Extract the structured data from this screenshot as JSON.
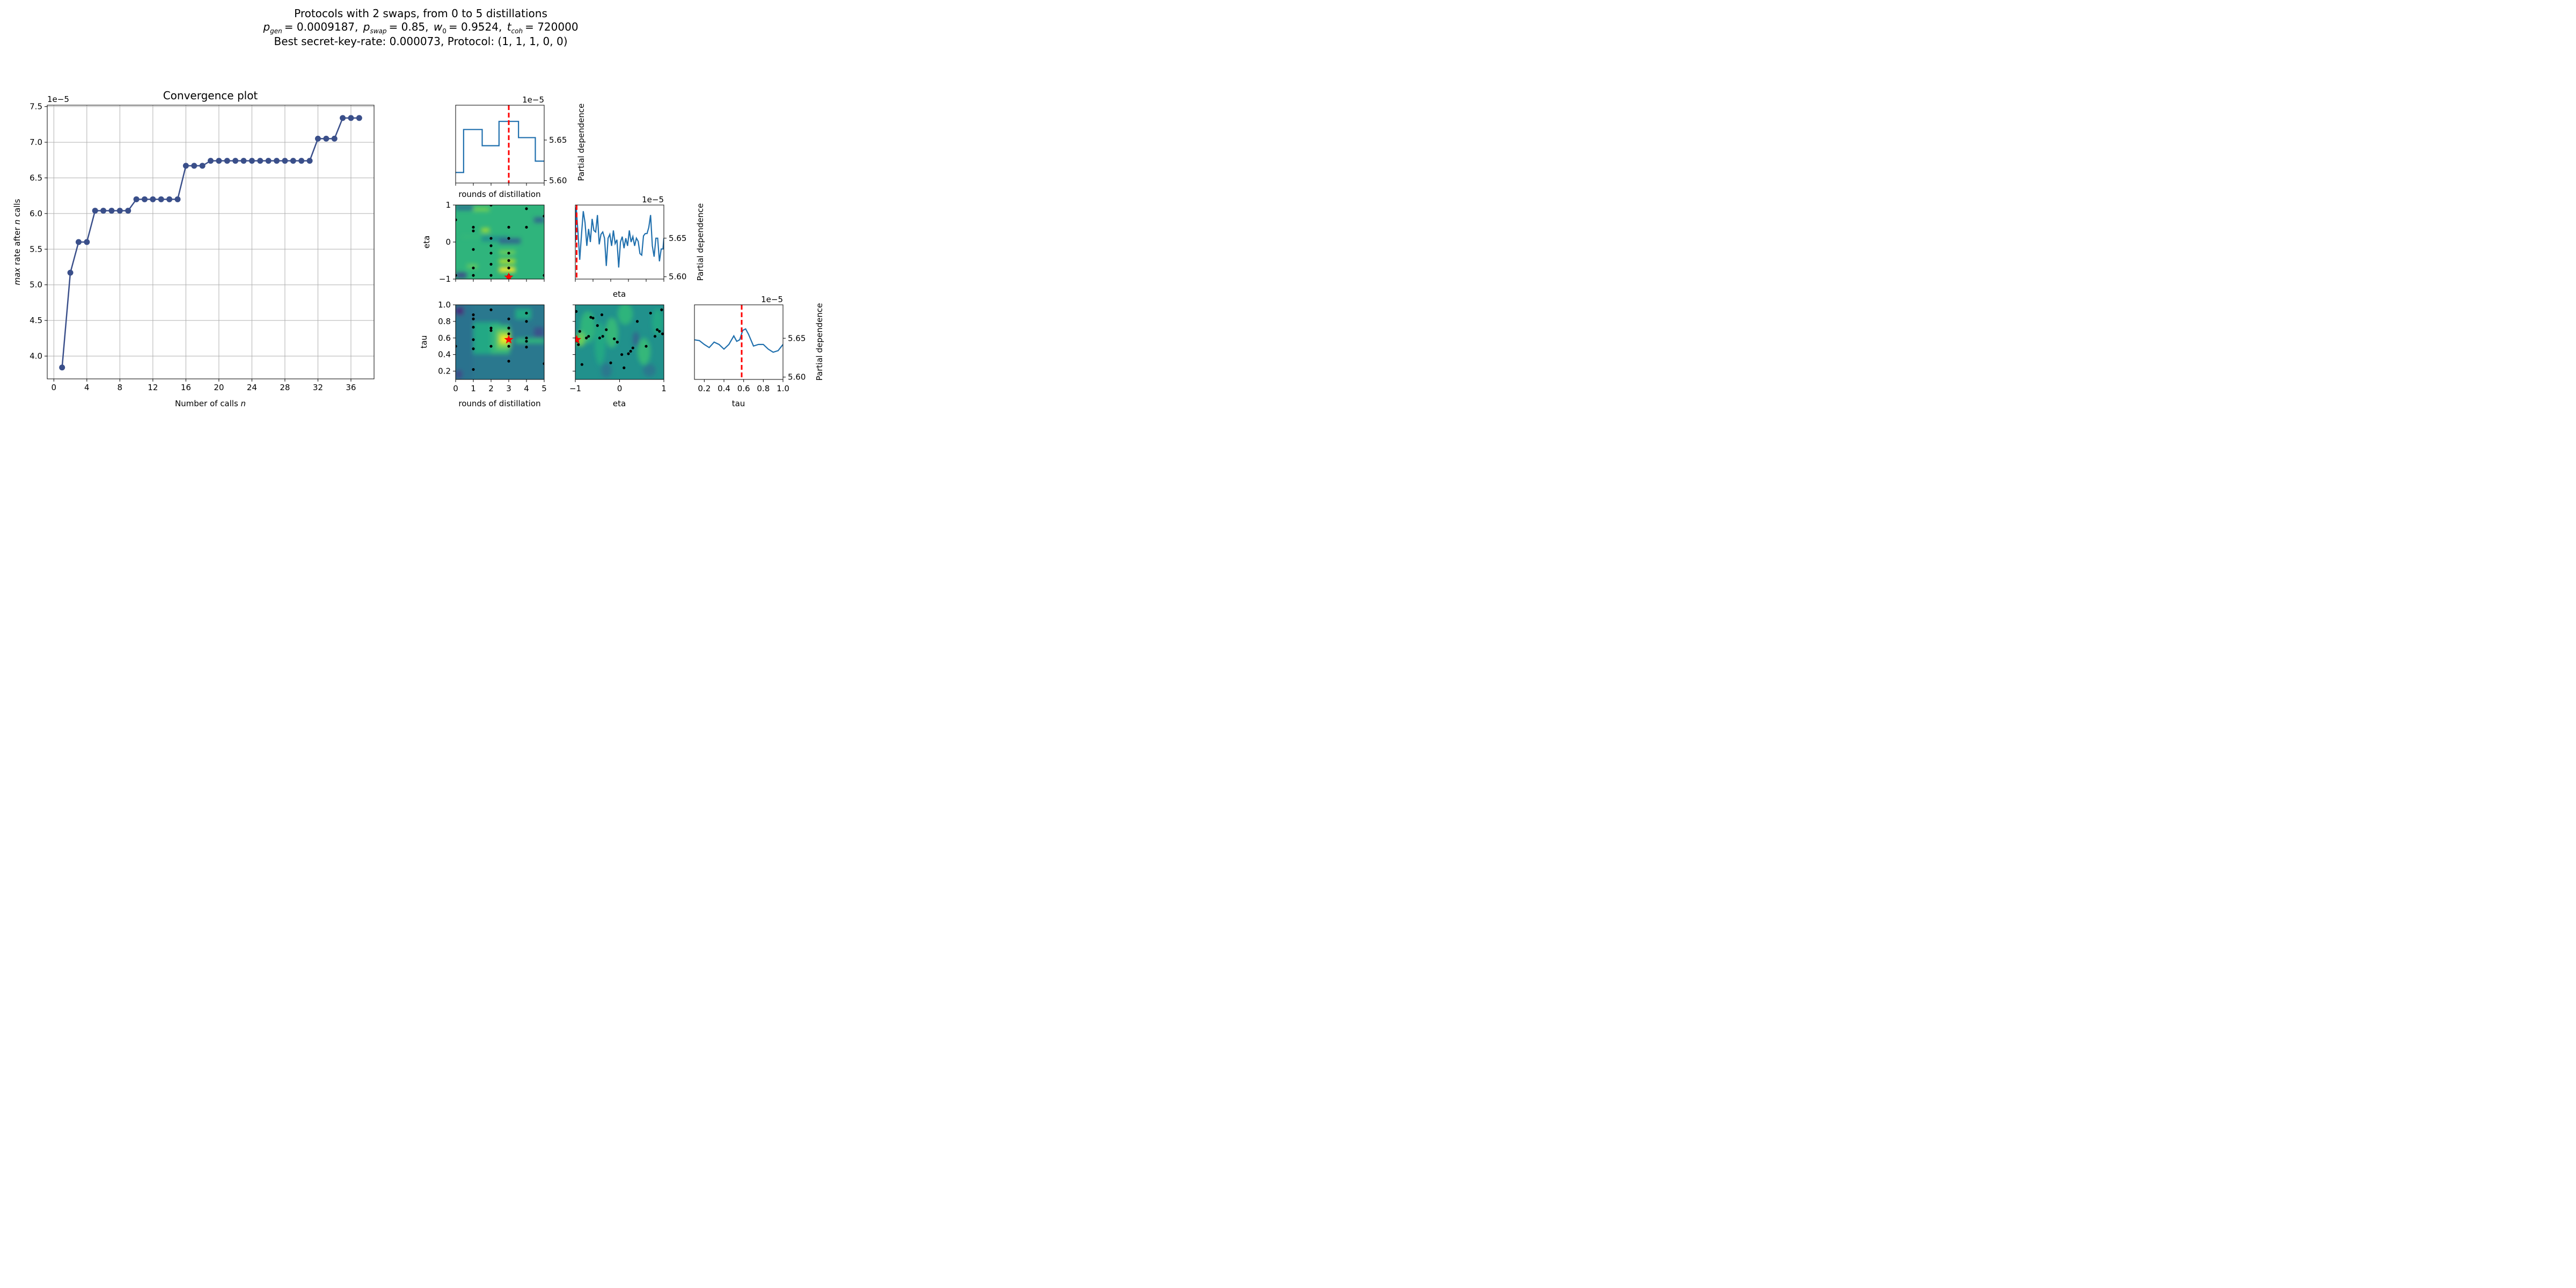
{
  "figure": {
    "title_line1": "Protocols with 2 swaps, from 0 to 5 distillations",
    "title_line2": {
      "p_gen_sym": "p",
      "p_gen_sub": "gen",
      "p_gen_val": "= 0.0009187,",
      "p_swap_sym": "p",
      "p_swap_sub": "swap",
      "p_swap_val": "= 0.85,",
      "w0_sym": "w",
      "w0_sub": "0",
      "w0_val": "= 0.9524,",
      "tcoh_sym": "t",
      "tcoh_sub": "coh",
      "tcoh_val": "= 720000"
    },
    "title_line3": "Best secret-key-rate: 0.000073, Protocol: (1, 1, 1, 0, 0)"
  },
  "colors": {
    "line": "#3a4f8a",
    "pd_line": "#1f6fad",
    "vline": "#ff0000",
    "grid": "#b0b0b0"
  },
  "chart_data": [
    {
      "type": "line",
      "title": "Convergence plot",
      "xlabel_prefix": "Number of calls ",
      "xlabel_var": "n",
      "ylabel_var": "max",
      "ylabel_mid": " rate after ",
      "ylabel_var2": "n",
      "ylabel_suffix": " calls",
      "offset_text": "1e−5",
      "xlim": [
        -0.8,
        38.8
      ],
      "ylim": [
        3.68,
        7.52
      ],
      "xticks": [
        0,
        4,
        8,
        12,
        16,
        20,
        24,
        28,
        32,
        36
      ],
      "yticks": [
        4.0,
        4.5,
        5.0,
        5.5,
        6.0,
        6.5,
        7.0,
        7.5
      ],
      "ytick_labels": [
        "4.0",
        "4.5",
        "5.0",
        "5.5",
        "6.0",
        "6.5",
        "7.0",
        "7.5"
      ],
      "grid": true,
      "x": [
        1,
        2,
        3,
        4,
        5,
        6,
        7,
        8,
        9,
        10,
        11,
        12,
        13,
        14,
        15,
        16,
        17,
        18,
        19,
        20,
        21,
        22,
        23,
        24,
        25,
        26,
        27,
        28,
        29,
        30,
        31,
        32,
        33,
        34,
        35,
        36,
        37
      ],
      "y": [
        3.84,
        5.17,
        5.6,
        5.6,
        6.04,
        6.04,
        6.04,
        6.04,
        6.04,
        6.2,
        6.2,
        6.2,
        6.2,
        6.2,
        6.2,
        6.67,
        6.67,
        6.67,
        6.74,
        6.74,
        6.74,
        6.74,
        6.74,
        6.74,
        6.74,
        6.74,
        6.74,
        6.74,
        6.74,
        6.74,
        6.74,
        7.05,
        7.05,
        7.05,
        7.34,
        7.34,
        7.34
      ]
    },
    {
      "type": "line",
      "name": "rounds of distillation",
      "xlabel": "rounds of distillation",
      "ylabel": "Partial dependence",
      "offset_text": "1e−5",
      "xlim": [
        0,
        5
      ],
      "ylim": [
        5.597,
        5.693
      ],
      "yticks": [
        5.6,
        5.65
      ],
      "ytick_labels": [
        "5.60",
        "5.65"
      ],
      "vline": 3,
      "x": [
        0,
        0.45,
        0.45,
        1,
        1.5,
        1.5,
        2,
        2.45,
        2.45,
        3,
        3.55,
        3.55,
        4,
        4.5,
        4.5,
        5
      ],
      "y": [
        5.61,
        5.61,
        5.663,
        5.663,
        5.663,
        5.643,
        5.643,
        5.643,
        5.673,
        5.673,
        5.673,
        5.653,
        5.653,
        5.653,
        5.624,
        5.624
      ]
    },
    {
      "type": "line",
      "name": "eta",
      "xlabel": "eta",
      "ylabel": "Partial dependence",
      "offset_text": "1e−5",
      "xlim": [
        -1,
        1
      ],
      "ylim": [
        5.597,
        5.693
      ],
      "yticks": [
        5.6,
        5.65
      ],
      "ytick_labels": [
        "5.60",
        "5.65"
      ],
      "vline": -0.97,
      "x": [
        -1,
        -0.98,
        -0.94,
        -0.9,
        -0.86,
        -0.82,
        -0.78,
        -0.74,
        -0.7,
        -0.66,
        -0.62,
        -0.58,
        -0.54,
        -0.5,
        -0.46,
        -0.42,
        -0.38,
        -0.34,
        -0.3,
        -0.26,
        -0.22,
        -0.18,
        -0.14,
        -0.1,
        -0.06,
        -0.02,
        0.02,
        0.06,
        0.1,
        0.14,
        0.18,
        0.22,
        0.26,
        0.3,
        0.34,
        0.38,
        0.42,
        0.46,
        0.5,
        0.54,
        0.58,
        0.62,
        0.66,
        0.7,
        0.74,
        0.78,
        0.82,
        0.86,
        0.9,
        0.94,
        0.98,
        1
      ],
      "y": [
        5.645,
        5.69,
        5.658,
        5.622,
        5.655,
        5.685,
        5.67,
        5.64,
        5.662,
        5.645,
        5.675,
        5.66,
        5.658,
        5.68,
        5.642,
        5.655,
        5.658,
        5.65,
        5.614,
        5.65,
        5.655,
        5.64,
        5.66,
        5.643,
        5.648,
        5.612,
        5.645,
        5.652,
        5.637,
        5.65,
        5.64,
        5.66,
        5.645,
        5.652,
        5.64,
        5.65,
        5.646,
        5.63,
        5.628,
        5.653,
        5.656,
        5.656,
        5.664,
        5.68,
        5.64,
        5.626,
        5.65,
        5.65,
        5.62,
        5.636,
        5.636,
        5.65
      ]
    },
    {
      "type": "heatmap",
      "name": "rounds of distillation vs eta",
      "ylabel": "eta",
      "xlim": [
        0,
        5
      ],
      "ylim": [
        -1,
        1
      ],
      "yticks": [
        -1,
        0,
        1
      ],
      "ytick_labels": [
        "−1",
        "0",
        "1"
      ],
      "star": [
        3,
        -0.95
      ],
      "samples": [
        [
          0,
          -0.9
        ],
        [
          0,
          0.6
        ],
        [
          1,
          0.3
        ],
        [
          1,
          0.4
        ],
        [
          1,
          -0.2
        ],
        [
          1,
          -0.7
        ],
        [
          1,
          -0.9
        ],
        [
          2,
          1
        ],
        [
          2,
          0.1
        ],
        [
          2,
          -0.1
        ],
        [
          2,
          -0.3
        ],
        [
          2,
          -0.6
        ],
        [
          2,
          -0.9
        ],
        [
          3,
          0.4
        ],
        [
          3,
          0.1
        ],
        [
          3,
          -0.3
        ],
        [
          3,
          -0.5
        ],
        [
          3,
          -0.7
        ],
        [
          3,
          -0.9
        ],
        [
          4,
          0.9
        ],
        [
          4,
          0.4
        ],
        [
          5,
          0.7
        ],
        [
          5,
          -0.9
        ]
      ]
    },
    {
      "type": "heatmap",
      "name": "rounds of distillation vs tau",
      "xlabel": "rounds of distillation",
      "ylabel": "tau",
      "xlim": [
        0,
        5
      ],
      "ylim": [
        0.1,
        1.0
      ],
      "xticks": [
        0,
        1,
        2,
        3,
        4,
        5
      ],
      "xtick_labels": [
        "0",
        "1",
        "2",
        "3",
        "4",
        "5"
      ],
      "yticks": [
        0.2,
        0.4,
        0.6,
        0.8,
        1.0
      ],
      "ytick_labels": [
        "0.2",
        "0.4",
        "0.6",
        "0.8",
        "1.0"
      ],
      "star": [
        3,
        0.58
      ],
      "samples": [
        [
          0,
          0.5
        ],
        [
          1,
          0.88
        ],
        [
          1,
          0.83
        ],
        [
          1,
          0.73
        ],
        [
          1,
          0.58
        ],
        [
          1,
          0.47
        ],
        [
          1,
          0.22
        ],
        [
          2,
          0.94
        ],
        [
          2,
          0.72
        ],
        [
          2,
          0.69
        ],
        [
          2,
          0.5
        ],
        [
          3,
          0.83
        ],
        [
          3,
          0.72
        ],
        [
          3,
          0.65
        ],
        [
          3,
          0.58
        ],
        [
          3,
          0.5
        ],
        [
          3,
          0.32
        ],
        [
          4,
          0.9
        ],
        [
          4,
          0.8
        ],
        [
          4,
          0.6
        ],
        [
          4,
          0.56
        ],
        [
          4,
          0.49
        ],
        [
          5,
          0.29
        ]
      ]
    },
    {
      "type": "heatmap",
      "name": "eta vs tau",
      "xlabel": "eta",
      "xlim": [
        -1,
        1
      ],
      "ylim": [
        0.1,
        1.0
      ],
      "xticks": [
        -1,
        0,
        1
      ],
      "xtick_labels": [
        "−1",
        "0",
        "1"
      ],
      "star": [
        -0.97,
        0.58
      ],
      "samples": [
        [
          -0.98,
          0.92
        ],
        [
          -0.9,
          0.68
        ],
        [
          -0.85,
          0.28
        ],
        [
          -0.7,
          0.62
        ],
        [
          -0.65,
          0.85
        ],
        [
          -0.6,
          0.84
        ],
        [
          -0.5,
          0.75
        ],
        [
          -0.45,
          0.6
        ],
        [
          -0.4,
          0.88
        ],
        [
          -0.38,
          0.62
        ],
        [
          -0.3,
          0.7
        ],
        [
          -0.2,
          0.3
        ],
        [
          -0.12,
          0.59
        ],
        [
          -0.05,
          0.55
        ],
        [
          0.05,
          0.4
        ],
        [
          0.1,
          0.24
        ],
        [
          0.2,
          0.41
        ],
        [
          0.25,
          0.44
        ],
        [
          0.3,
          0.48
        ],
        [
          0.4,
          0.8
        ],
        [
          0.6,
          0.5
        ],
        [
          0.7,
          0.9
        ],
        [
          0.8,
          0.62
        ],
        [
          0.85,
          0.7
        ],
        [
          0.9,
          0.68
        ],
        [
          0.95,
          0.94
        ],
        [
          0.97,
          0.65
        ],
        [
          -0.95,
          0.56
        ],
        [
          -0.93,
          0.52
        ],
        [
          -0.75,
          0.6
        ]
      ]
    },
    {
      "type": "line",
      "name": "tau",
      "xlabel": "tau",
      "ylabel": "Partial dependence",
      "offset_text": "1e−5",
      "xlim": [
        0.1,
        1.0
      ],
      "ylim": [
        5.597,
        5.693
      ],
      "xticks": [
        0.2,
        0.4,
        0.6,
        0.8,
        1.0
      ],
      "xtick_labels": [
        "0.2",
        "0.4",
        "0.6",
        "0.8",
        "1.0"
      ],
      "yticks": [
        5.6,
        5.65
      ],
      "ytick_labels": [
        "5.60",
        "5.65"
      ],
      "vline": 0.58,
      "x": [
        0.1,
        0.15,
        0.2,
        0.25,
        0.3,
        0.35,
        0.4,
        0.45,
        0.5,
        0.53,
        0.56,
        0.59,
        0.62,
        0.65,
        0.7,
        0.75,
        0.8,
        0.85,
        0.9,
        0.95,
        1.0
      ],
      "y": [
        5.648,
        5.647,
        5.642,
        5.638,
        5.645,
        5.642,
        5.636,
        5.642,
        5.653,
        5.646,
        5.648,
        5.66,
        5.662,
        5.655,
        5.64,
        5.642,
        5.642,
        5.636,
        5.632,
        5.634,
        5.642
      ]
    }
  ]
}
